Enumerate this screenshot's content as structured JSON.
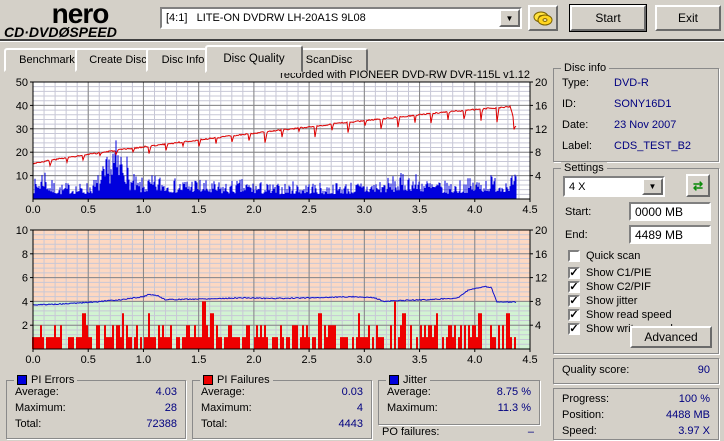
{
  "window": {
    "logo_top": "nero",
    "logo_sub_left": "CD·DVD",
    "logo_disc": "Ø",
    "logo_sub_right": "SPEED",
    "drive_selector": "[4:1]   LITE-ON DVDRW LH-20A1S 9L08",
    "start_button": "Start",
    "exit_button": "Exit"
  },
  "tabs": [
    {
      "label": "Benchmark",
      "active": false
    },
    {
      "label": "Create Disc",
      "active": false
    },
    {
      "label": "Disc Info",
      "active": false
    },
    {
      "label": "Disc Quality",
      "active": true
    },
    {
      "label": "ScanDisc",
      "active": false
    }
  ],
  "chart_data": [
    {
      "type": "mixed",
      "title": "recorded with PIONEER DVD-RW  DVR-115L v1.12",
      "x_range": [
        0,
        4.5
      ],
      "data_end_x": 4.38,
      "x_ticks": [
        "0.0",
        "0.5",
        "1.0",
        "1.5",
        "2.0",
        "2.5",
        "3.0",
        "3.5",
        "4.0",
        "4.5"
      ],
      "x_minor": 0.1,
      "x_major": 0.5,
      "left_axis": {
        "max": 50,
        "ticks": [
          10,
          20,
          30,
          40,
          50
        ],
        "minor": 2,
        "major": 10
      },
      "right_axis": {
        "max": 20,
        "ticks": [
          4,
          8,
          12,
          16,
          20
        ]
      },
      "grid": true,
      "series": [
        {
          "name": "PI Errors",
          "kind": "noise-bars",
          "axis": "left",
          "color": "#0000dd",
          "seed": 7,
          "noise_floor": 1.2,
          "envelope": [
            [
              0,
              7
            ],
            [
              0.05,
              10
            ],
            [
              0.1,
              15
            ],
            [
              0.15,
              8
            ],
            [
              0.25,
              6
            ],
            [
              0.35,
              7
            ],
            [
              0.45,
              6
            ],
            [
              0.55,
              8
            ],
            [
              0.62,
              12
            ],
            [
              0.68,
              18
            ],
            [
              0.73,
              26
            ],
            [
              0.78,
              20
            ],
            [
              0.82,
              27
            ],
            [
              0.87,
              12
            ],
            [
              0.95,
              8
            ],
            [
              1.05,
              9
            ],
            [
              1.15,
              10
            ],
            [
              1.3,
              8
            ],
            [
              1.45,
              9
            ],
            [
              1.6,
              7
            ],
            [
              1.75,
              7
            ],
            [
              1.9,
              8
            ],
            [
              2.05,
              7
            ],
            [
              2.2,
              6
            ],
            [
              2.35,
              7
            ],
            [
              2.5,
              7
            ],
            [
              2.65,
              6
            ],
            [
              2.8,
              7
            ],
            [
              2.95,
              7
            ],
            [
              3.1,
              8
            ],
            [
              3.25,
              9
            ],
            [
              3.4,
              11
            ],
            [
              3.5,
              10
            ],
            [
              3.6,
              8
            ],
            [
              3.75,
              7
            ],
            [
              3.9,
              8
            ],
            [
              4.05,
              9
            ],
            [
              4.15,
              10
            ],
            [
              4.25,
              9
            ],
            [
              4.33,
              11
            ],
            [
              4.38,
              9
            ]
          ]
        },
        {
          "name": "Write speed",
          "kind": "line",
          "axis": "right",
          "color": "#dd0000",
          "seed": 3,
          "noise": 0.12,
          "dips": {
            "period": 0.15,
            "width": 0.02,
            "depth_start": 1.1,
            "depth_end": 3.2
          },
          "envelope": [
            [
              0,
              6.1
            ],
            [
              0.25,
              6.9
            ],
            [
              0.5,
              7.6
            ],
            [
              0.75,
              8.3
            ],
            [
              1.0,
              8.9
            ],
            [
              1.25,
              9.5
            ],
            [
              1.5,
              10.1
            ],
            [
              1.75,
              10.7
            ],
            [
              2.0,
              11.2
            ],
            [
              2.25,
              11.8
            ],
            [
              2.5,
              12.3
            ],
            [
              2.75,
              12.9
            ],
            [
              3.0,
              13.4
            ],
            [
              3.25,
              13.9
            ],
            [
              3.5,
              14.4
            ],
            [
              3.75,
              14.9
            ],
            [
              4.0,
              15.3
            ],
            [
              4.2,
              15.6
            ],
            [
              4.32,
              15.8
            ],
            [
              4.38,
              11.9
            ]
          ]
        }
      ]
    },
    {
      "type": "mixed",
      "title": "",
      "x_range": [
        0,
        4.5
      ],
      "data_end_x": 4.38,
      "x_ticks": [
        "0.0",
        "0.5",
        "1.0",
        "1.5",
        "2.0",
        "2.5",
        "3.0",
        "3.5",
        "4.0",
        "4.5"
      ],
      "x_minor": 0.1,
      "x_major": 0.5,
      "left_axis": {
        "max": 10,
        "ticks": [
          2,
          4,
          6,
          8,
          10
        ],
        "minor": 0.4,
        "major": 2
      },
      "right_axis": {
        "max": 20,
        "ticks": [
          4,
          8,
          12,
          16,
          20
        ]
      },
      "grid": true,
      "zones": [
        {
          "from": 0,
          "to": 4,
          "axis": "left",
          "color": "#d2f3d2"
        },
        {
          "from": 4,
          "to": 10,
          "axis": "left",
          "color": "#fdd8c2"
        }
      ],
      "series": [
        {
          "name": "PI Failures",
          "kind": "random-bars",
          "axis": "left",
          "color": "#ee0000",
          "seed": 11,
          "levels": [
            0,
            1,
            2
          ],
          "probs": [
            0.3,
            0.38,
            0.32
          ],
          "spikes": [
            [
              0.46,
              3
            ],
            [
              0.82,
              3
            ],
            [
              1.05,
              3
            ],
            [
              1.55,
              4
            ],
            [
              1.62,
              3
            ],
            [
              2.6,
              3
            ],
            [
              2.95,
              3
            ],
            [
              3.28,
              4
            ],
            [
              3.36,
              3
            ],
            [
              3.66,
              3
            ],
            [
              4.05,
              3
            ],
            [
              4.3,
              3
            ]
          ]
        },
        {
          "name": "Jitter",
          "kind": "line",
          "axis": "right",
          "color": "#1111cc",
          "seed": 5,
          "noise": 0.09,
          "envelope": [
            [
              0,
              7.4
            ],
            [
              0.3,
              7.6
            ],
            [
              0.55,
              7.9
            ],
            [
              0.8,
              8.3
            ],
            [
              1.0,
              8.8
            ],
            [
              1.05,
              9.2
            ],
            [
              1.12,
              9.0
            ],
            [
              1.2,
              8.3
            ],
            [
              1.5,
              8.4
            ],
            [
              1.9,
              8.6
            ],
            [
              2.2,
              8.5
            ],
            [
              2.5,
              8.6
            ],
            [
              2.9,
              8.8
            ],
            [
              3.1,
              8.6
            ],
            [
              3.17,
              8.0
            ],
            [
              3.4,
              8.2
            ],
            [
              3.6,
              8.3
            ],
            [
              3.85,
              8.6
            ],
            [
              3.95,
              10.0
            ],
            [
              4.1,
              10.5
            ],
            [
              4.15,
              10.3
            ],
            [
              4.2,
              7.9
            ],
            [
              4.38,
              7.9
            ]
          ]
        }
      ]
    }
  ],
  "disc_info": {
    "title": "Disc info",
    "rows": [
      {
        "label": "Type:",
        "value": "DVD-R"
      },
      {
        "label": "ID:",
        "value": "SONY16D1"
      },
      {
        "label": "Date:",
        "value": "23 Nov 2007"
      },
      {
        "label": "Label:",
        "value": "CDS_TEST_B2"
      }
    ]
  },
  "settings": {
    "title": "Settings",
    "speed_selected": "4 X",
    "start_label": "Start:",
    "start_value": "0000 MB",
    "end_label": "End:",
    "end_value": "4489 MB",
    "checkboxes": [
      {
        "label": "Quick scan",
        "checked": false
      },
      {
        "label": "Show C1/PIE",
        "checked": true
      },
      {
        "label": "Show C2/PIF",
        "checked": true
      },
      {
        "label": "Show jitter",
        "checked": true
      },
      {
        "label": "Show read speed",
        "checked": true
      },
      {
        "label": "Show write speed",
        "checked": true
      }
    ],
    "advanced_button": "Advanced"
  },
  "quality": {
    "label": "Quality score:",
    "value": "90"
  },
  "progress": {
    "rows": [
      {
        "label": "Progress:",
        "value": "100 %"
      },
      {
        "label": "Position:",
        "value": "4488 MB"
      },
      {
        "label": "Speed:",
        "value": "3.97 X"
      }
    ]
  },
  "stats": [
    {
      "title": "PI Errors",
      "swatch": "#0000dd",
      "rows": [
        {
          "label": "Average:",
          "value": "4.03"
        },
        {
          "label": "Maximum:",
          "value": "28"
        },
        {
          "label": "Total:",
          "value": "72388"
        }
      ]
    },
    {
      "title": "PI Failures",
      "swatch": "#ee0000",
      "rows": [
        {
          "label": "Average:",
          "value": "0.03"
        },
        {
          "label": "Maximum:",
          "value": "4"
        },
        {
          "label": "Total:",
          "value": "4443"
        }
      ]
    },
    {
      "title": "Jitter",
      "swatch": "#0000dd",
      "rows": [
        {
          "label": "Average:",
          "value": "8.75 %"
        },
        {
          "label": "Maximum:",
          "value": "11.3 %"
        }
      ],
      "extra": {
        "label": "PO failures:",
        "value": "–"
      }
    }
  ]
}
